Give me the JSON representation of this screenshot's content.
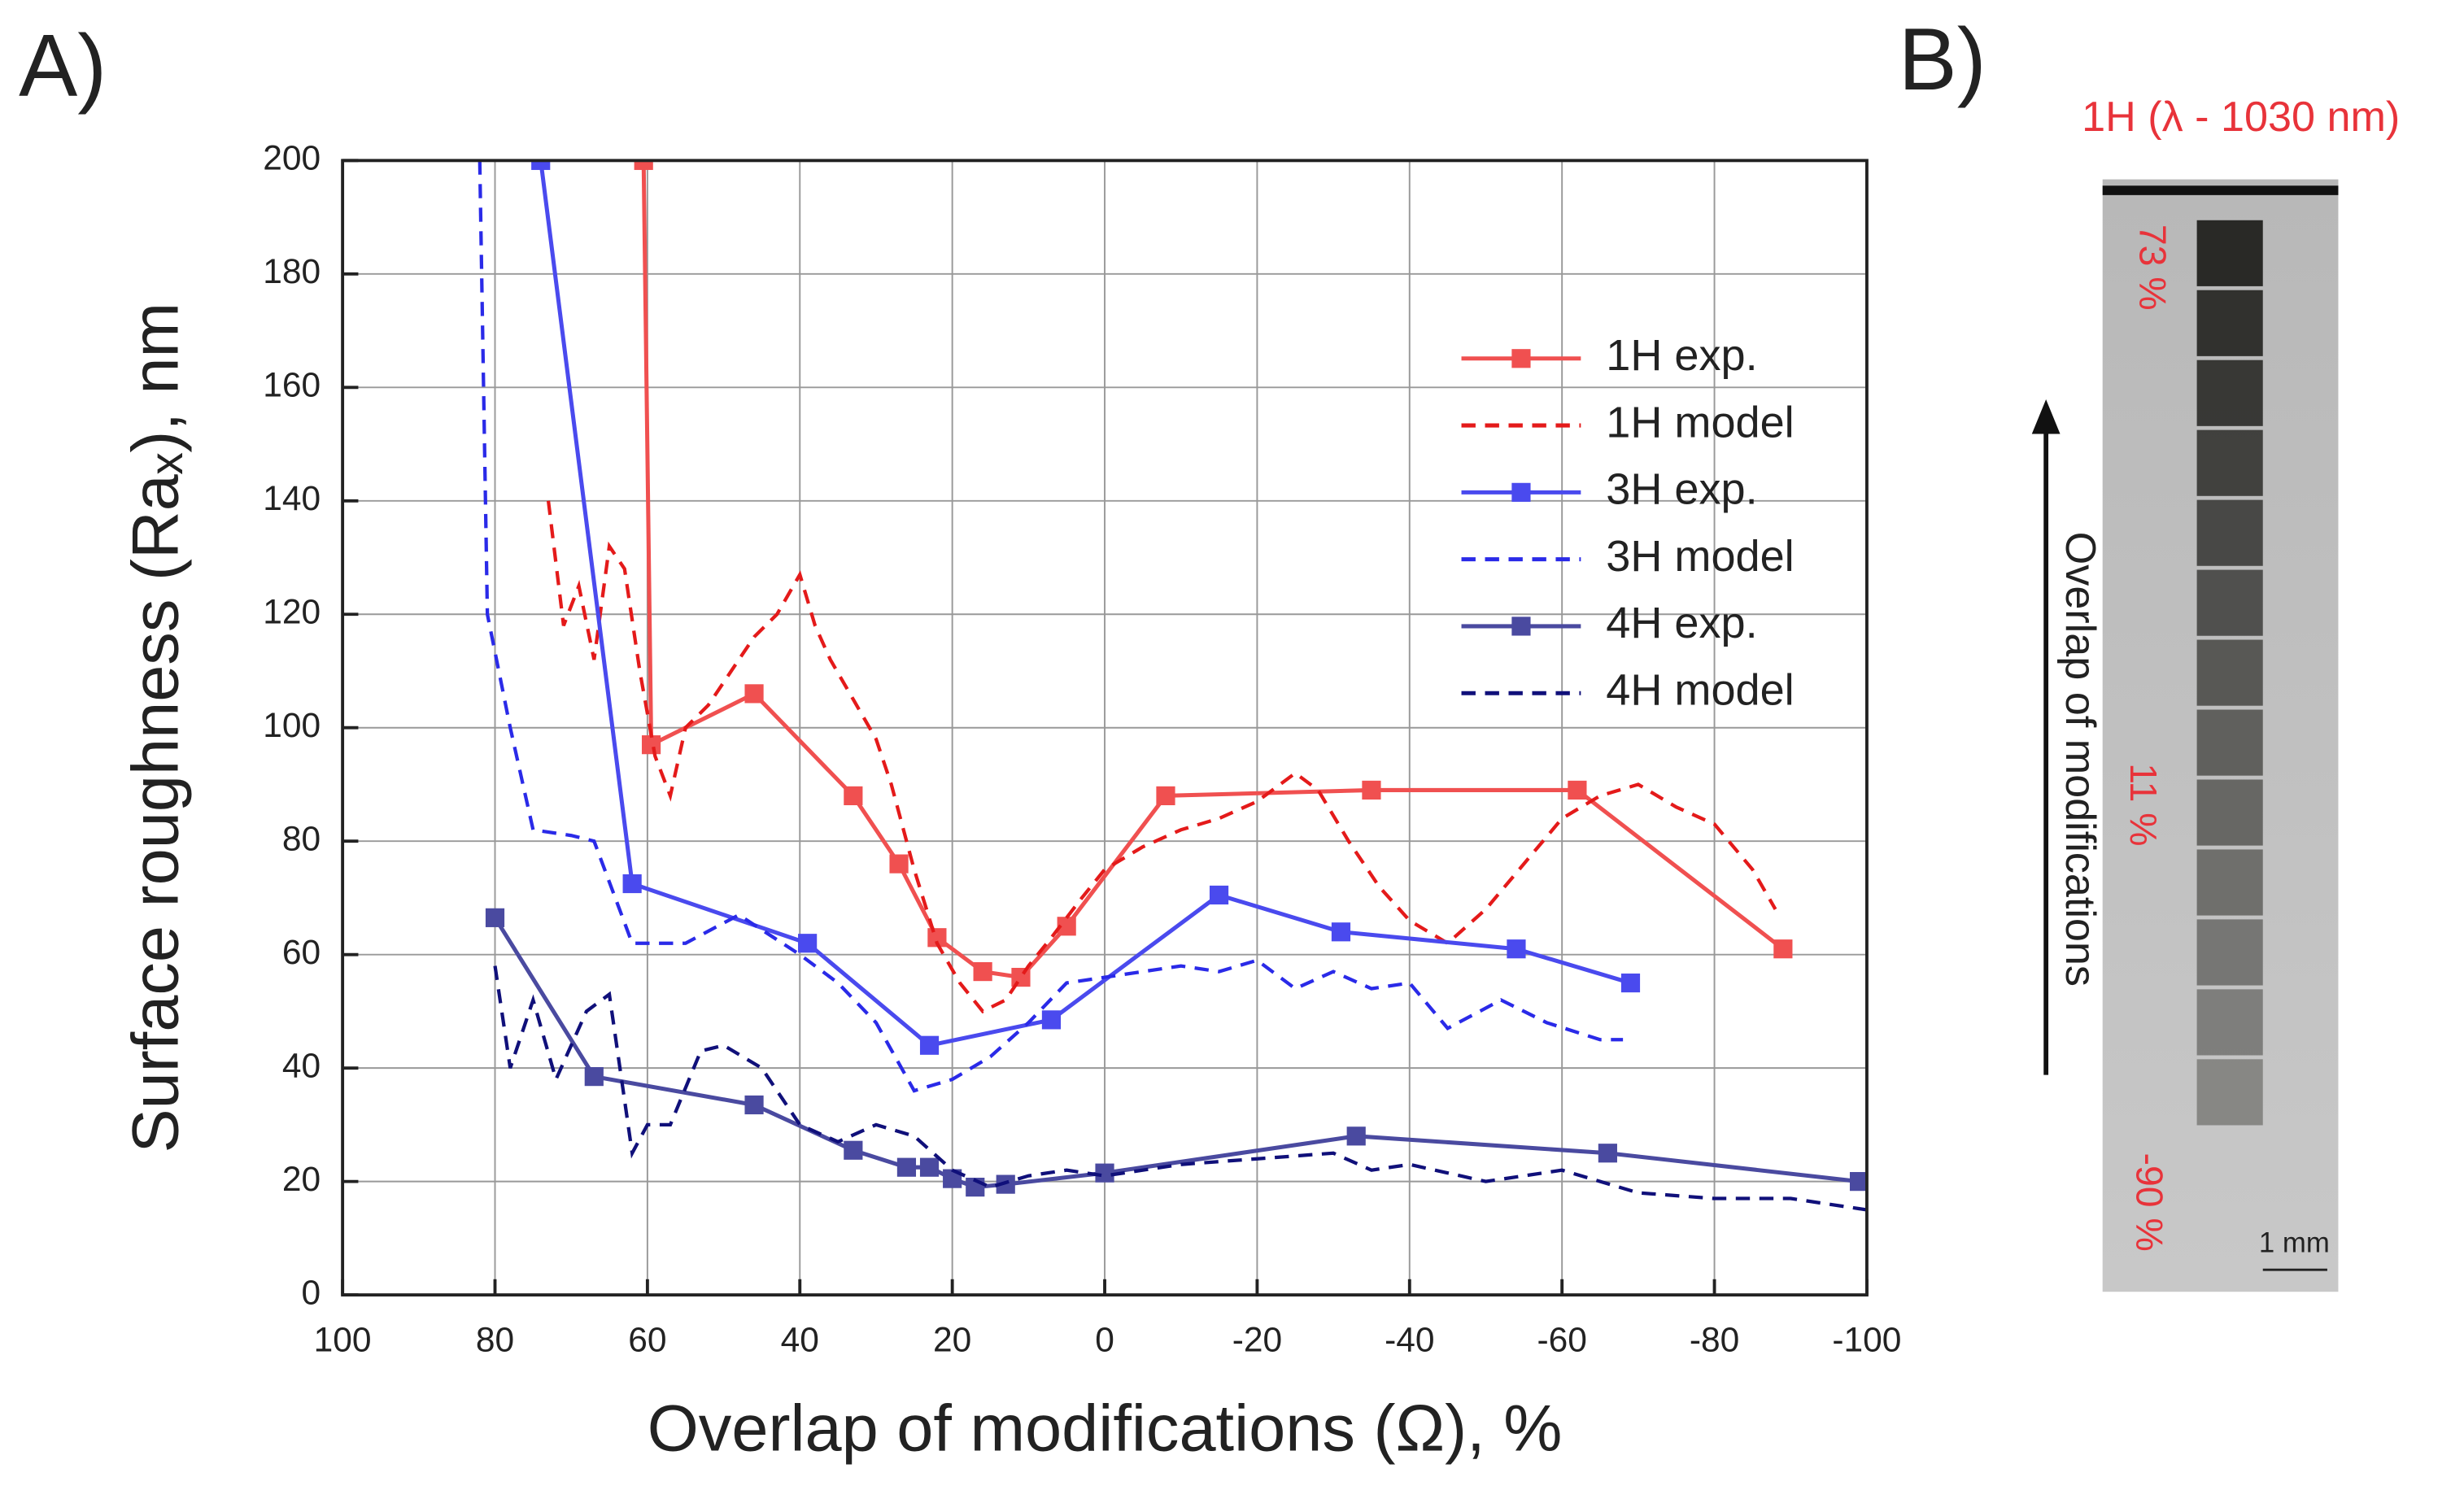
{
  "chart_data": {
    "type": "line",
    "panel_label": "A)",
    "x_label": "Overlap of modifications (Ω), %",
    "y_label": "Surface roughness (Raₓ), nm",
    "xlim": [
      100,
      -100
    ],
    "ylim": [
      0,
      200
    ],
    "xticks": [
      100,
      80,
      60,
      40,
      20,
      0,
      -20,
      -40,
      -60,
      -80,
      -100
    ],
    "yticks": [
      0,
      20,
      40,
      60,
      80,
      100,
      120,
      140,
      160,
      180,
      200
    ],
    "grid": true,
    "legend": "upper right",
    "series": [
      {
        "name": "1H exp.",
        "color": "#f05050",
        "marker": "square",
        "dashed": false,
        "x": [
          60.5,
          59.5,
          46,
          33,
          27,
          22,
          16,
          11,
          5,
          -8,
          -35,
          -62,
          -89
        ],
        "values": [
          200,
          97,
          106,
          88,
          76,
          63,
          57,
          56,
          65,
          88,
          89,
          89,
          61
        ]
      },
      {
        "name": "1H model",
        "color": "#e41a1a",
        "marker": "none",
        "dashed": true,
        "x": [
          73,
          71,
          69,
          67,
          65,
          63,
          61,
          59,
          57,
          55,
          52,
          49,
          46,
          43,
          40,
          38,
          36,
          33,
          30,
          28,
          25,
          22,
          19,
          16,
          13,
          10,
          7,
          3,
          0,
          -5,
          -10,
          -15,
          -20,
          -25,
          -28,
          -32,
          -36,
          -40,
          -45,
          -50,
          -55,
          -60,
          -65,
          -70,
          -75,
          -80,
          -85,
          -88
        ],
        "values": [
          140,
          118,
          125,
          112,
          132,
          128,
          110,
          95,
          88,
          100,
          104,
          110,
          116,
          120,
          127,
          118,
          112,
          105,
          98,
          90,
          75,
          62,
          55,
          50,
          52,
          58,
          63,
          70,
          75,
          79,
          82,
          84,
          87,
          92,
          89,
          80,
          72,
          66,
          62,
          68,
          76,
          84,
          88,
          90,
          86,
          83,
          75,
          68
        ]
      },
      {
        "name": "3H exp.",
        "color": "#4a4aee",
        "marker": "square",
        "dashed": false,
        "x": [
          74,
          62,
          39,
          23,
          7,
          -15,
          -31,
          -54,
          -69
        ],
        "values": [
          200,
          72.5,
          62,
          44,
          48.5,
          70.5,
          64,
          61,
          55
        ]
      },
      {
        "name": "3H model",
        "color": "#2a2ae8",
        "marker": "none",
        "dashed": true,
        "x": [
          82,
          81,
          78,
          75,
          70,
          67,
          62,
          55,
          48,
          40,
          35,
          30,
          25,
          20,
          15,
          10,
          5,
          0,
          -10,
          -15,
          -20,
          -25,
          -30,
          -35,
          -40,
          -45,
          -52,
          -58,
          -65,
          -68
        ],
        "values": [
          200,
          120,
          100,
          82,
          81,
          80,
          62,
          62,
          67,
          60,
          55,
          48,
          36,
          38,
          42,
          48,
          55,
          56,
          58,
          57,
          59,
          54,
          57,
          54,
          55,
          47,
          52,
          48,
          45,
          45
        ]
      },
      {
        "name": "4H exp.",
        "color": "#4a4aa0",
        "marker": "square",
        "dashed": false,
        "x": [
          80,
          67,
          46,
          33,
          26,
          23,
          20,
          17,
          13,
          0,
          -33,
          -66,
          -99
        ],
        "values": [
          66.5,
          38.5,
          33.5,
          25.5,
          22.5,
          22.5,
          20.5,
          19,
          19.5,
          21.5,
          28,
          25,
          20
        ]
      },
      {
        "name": "4H model",
        "color": "#10107a",
        "marker": "none",
        "dashed": true,
        "x": [
          80,
          78,
          75,
          72,
          68,
          65,
          62,
          60,
          57,
          53,
          50,
          45,
          40,
          35,
          30,
          25,
          20,
          15,
          10,
          5,
          0,
          -10,
          -20,
          -30,
          -35,
          -40,
          -50,
          -60,
          -70,
          -80,
          -90,
          -100
        ],
        "values": [
          58,
          40,
          52,
          38,
          50,
          53,
          25,
          30,
          30,
          43,
          44,
          40,
          30,
          27,
          30,
          28,
          22,
          19,
          21,
          22,
          21,
          23,
          24,
          25,
          22,
          23,
          20,
          22,
          18,
          17,
          17,
          15
        ]
      }
    ]
  },
  "panel_b": {
    "panel_label": "B)",
    "title": "1H (λ - 1030 nm)",
    "top_label": "73 %",
    "mid_label": "11 %",
    "bottom_label": "-90 %",
    "arrow_label": "Overlap of modifications",
    "scale_label": "1 mm"
  }
}
